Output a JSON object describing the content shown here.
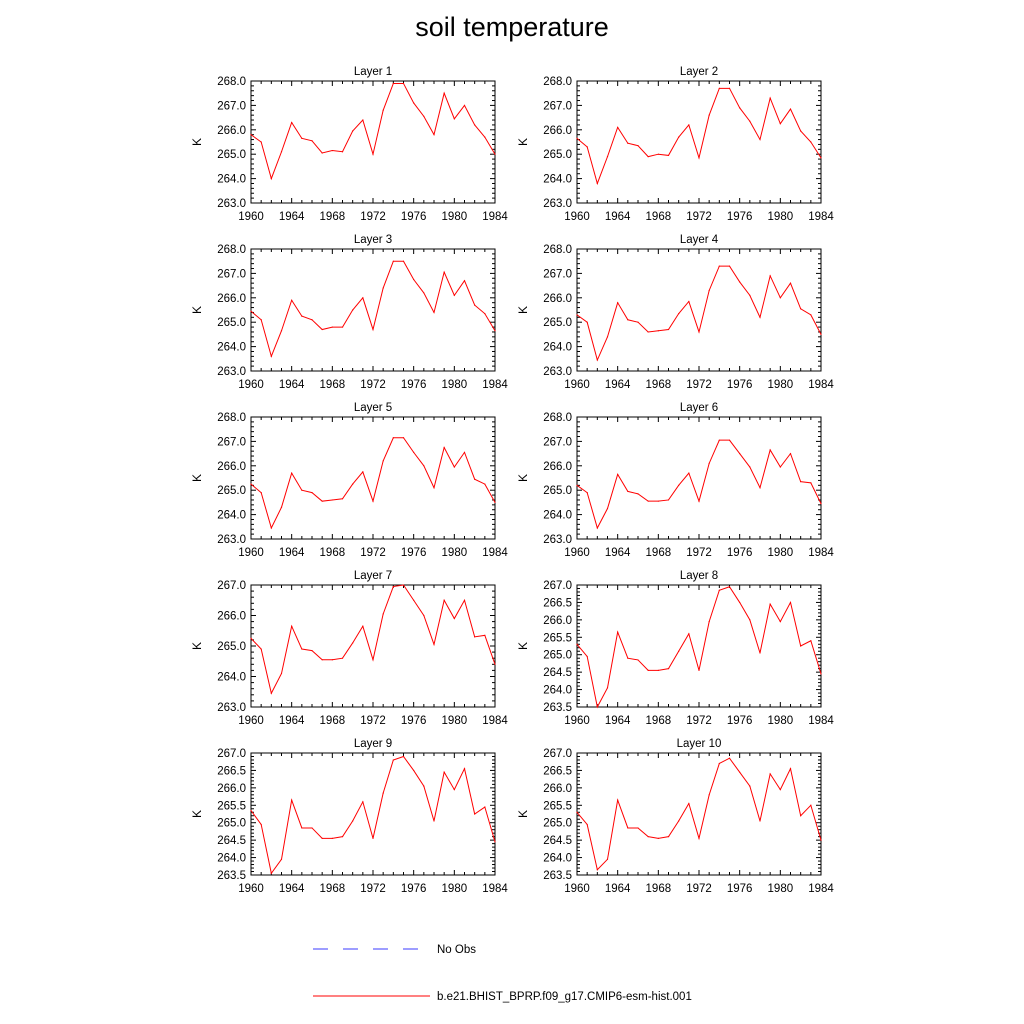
{
  "title": "soil temperature",
  "colors": {
    "model": "#ff0000",
    "obs": "#3b3bff",
    "axis": "#000000"
  },
  "legend": {
    "placement": "bottom-center",
    "items": [
      {
        "label": "No Obs",
        "style": "dashed",
        "color": "#3b3bff"
      },
      {
        "label": "b.e21.BHIST_BPRP.f09_g17.CMIP6-esm-hist.001",
        "style": "solid",
        "color": "#ff0000"
      }
    ]
  },
  "chart_data": [
    {
      "type": "line",
      "title": "Layer 1",
      "ylabel": "K",
      "xlim": [
        1960,
        1984
      ],
      "ylim": [
        263.0,
        268.0
      ],
      "xticks": [
        "1960",
        "1964",
        "1968",
        "1972",
        "1976",
        "1980",
        "1984"
      ],
      "yticks": [
        "263.0",
        "264.0",
        "265.0",
        "266.0",
        "267.0",
        "268.0"
      ],
      "x": [
        1960,
        1961,
        1962,
        1963,
        1964,
        1965,
        1966,
        1967,
        1968,
        1969,
        1970,
        1971,
        1972,
        1973,
        1974,
        1975,
        1976,
        1977,
        1978,
        1979,
        1980,
        1981,
        1982,
        1983,
        1984
      ],
      "series": [
        {
          "values": [
            265.8,
            265.5,
            264.0,
            265.1,
            266.3,
            265.65,
            265.55,
            265.05,
            265.15,
            265.1,
            265.95,
            266.4,
            265.0,
            266.8,
            267.9,
            267.9,
            267.1,
            266.55,
            265.8,
            267.5,
            266.45,
            267.0,
            266.2,
            265.7,
            265.0
          ]
        }
      ]
    },
    {
      "type": "line",
      "title": "Layer 2",
      "ylabel": "K",
      "xlim": [
        1960,
        1984
      ],
      "ylim": [
        263.0,
        268.0
      ],
      "xticks": [
        "1960",
        "1964",
        "1968",
        "1972",
        "1976",
        "1980",
        "1984"
      ],
      "yticks": [
        "263.0",
        "264.0",
        "265.0",
        "266.0",
        "267.0",
        "268.0"
      ],
      "x": [
        1960,
        1961,
        1962,
        1963,
        1964,
        1965,
        1966,
        1967,
        1968,
        1969,
        1970,
        1971,
        1972,
        1973,
        1974,
        1975,
        1976,
        1977,
        1978,
        1979,
        1980,
        1981,
        1982,
        1983,
        1984
      ],
      "series": [
        {
          "values": [
            265.65,
            265.3,
            263.8,
            264.9,
            266.1,
            265.45,
            265.35,
            264.9,
            265.0,
            264.95,
            265.7,
            266.2,
            264.85,
            266.6,
            267.7,
            267.7,
            266.9,
            266.35,
            265.6,
            267.3,
            266.25,
            266.85,
            265.95,
            265.5,
            264.85
          ]
        }
      ]
    },
    {
      "type": "line",
      "title": "Layer 3",
      "ylabel": "K",
      "xlim": [
        1960,
        1984
      ],
      "ylim": [
        263.0,
        268.0
      ],
      "xticks": [
        "1960",
        "1964",
        "1968",
        "1972",
        "1976",
        "1980",
        "1984"
      ],
      "yticks": [
        "263.0",
        "264.0",
        "265.0",
        "266.0",
        "267.0",
        "268.0"
      ],
      "x": [
        1960,
        1961,
        1962,
        1963,
        1964,
        1965,
        1966,
        1967,
        1968,
        1969,
        1970,
        1971,
        1972,
        1973,
        1974,
        1975,
        1976,
        1977,
        1978,
        1979,
        1980,
        1981,
        1982,
        1983,
        1984
      ],
      "series": [
        {
          "values": [
            265.45,
            265.1,
            263.6,
            264.65,
            265.9,
            265.25,
            265.1,
            264.7,
            264.8,
            264.8,
            265.5,
            266.0,
            264.7,
            266.4,
            267.5,
            267.5,
            266.75,
            266.2,
            265.4,
            267.05,
            266.1,
            266.7,
            265.7,
            265.35,
            264.65
          ]
        }
      ]
    },
    {
      "type": "line",
      "title": "Layer 4",
      "ylabel": "K",
      "xlim": [
        1960,
        1984
      ],
      "ylim": [
        263.0,
        268.0
      ],
      "xticks": [
        "1960",
        "1964",
        "1968",
        "1972",
        "1976",
        "1980",
        "1984"
      ],
      "yticks": [
        "263.0",
        "264.0",
        "265.0",
        "266.0",
        "267.0",
        "268.0"
      ],
      "x": [
        1960,
        1961,
        1962,
        1963,
        1964,
        1965,
        1966,
        1967,
        1968,
        1969,
        1970,
        1971,
        1972,
        1973,
        1974,
        1975,
        1976,
        1977,
        1978,
        1979,
        1980,
        1981,
        1982,
        1983,
        1984
      ],
      "series": [
        {
          "values": [
            265.3,
            265.0,
            263.45,
            264.4,
            265.8,
            265.1,
            265.0,
            264.6,
            264.65,
            264.7,
            265.35,
            265.85,
            264.6,
            266.3,
            267.3,
            267.3,
            266.65,
            266.1,
            265.2,
            266.9,
            266.0,
            266.6,
            265.55,
            265.3,
            264.5
          ]
        }
      ]
    },
    {
      "type": "line",
      "title": "Layer 5",
      "ylabel": "K",
      "xlim": [
        1960,
        1984
      ],
      "ylim": [
        263.0,
        268.0
      ],
      "xticks": [
        "1960",
        "1964",
        "1968",
        "1972",
        "1976",
        "1980",
        "1984"
      ],
      "yticks": [
        "263.0",
        "264.0",
        "265.0",
        "266.0",
        "267.0",
        "268.0"
      ],
      "x": [
        1960,
        1961,
        1962,
        1963,
        1964,
        1965,
        1966,
        1967,
        1968,
        1969,
        1970,
        1971,
        1972,
        1973,
        1974,
        1975,
        1976,
        1977,
        1978,
        1979,
        1980,
        1981,
        1982,
        1983,
        1984
      ],
      "series": [
        {
          "values": [
            265.25,
            264.9,
            263.45,
            264.3,
            265.7,
            265.0,
            264.9,
            264.55,
            264.6,
            264.65,
            265.25,
            265.75,
            264.55,
            266.2,
            267.15,
            267.15,
            266.55,
            266.0,
            265.1,
            266.75,
            265.95,
            266.55,
            265.45,
            265.25,
            264.5
          ]
        }
      ]
    },
    {
      "type": "line",
      "title": "Layer 6",
      "ylabel": "K",
      "xlim": [
        1960,
        1984
      ],
      "ylim": [
        263.0,
        268.0
      ],
      "xticks": [
        "1960",
        "1964",
        "1968",
        "1972",
        "1976",
        "1980",
        "1984"
      ],
      "yticks": [
        "263.0",
        "264.0",
        "265.0",
        "266.0",
        "267.0",
        "268.0"
      ],
      "x": [
        1960,
        1961,
        1962,
        1963,
        1964,
        1965,
        1966,
        1967,
        1968,
        1969,
        1970,
        1971,
        1972,
        1973,
        1974,
        1975,
        1976,
        1977,
        1978,
        1979,
        1980,
        1981,
        1982,
        1983,
        1984
      ],
      "series": [
        {
          "values": [
            265.2,
            264.9,
            263.45,
            264.25,
            265.65,
            264.95,
            264.85,
            264.55,
            264.55,
            264.6,
            265.2,
            265.7,
            264.55,
            266.1,
            267.05,
            267.05,
            266.5,
            265.95,
            265.1,
            266.65,
            265.95,
            266.5,
            265.35,
            265.3,
            264.45
          ]
        }
      ]
    },
    {
      "type": "line",
      "title": "Layer 7",
      "ylabel": "K",
      "xlim": [
        1960,
        1984
      ],
      "ylim": [
        263.0,
        267.0
      ],
      "xticks": [
        "1960",
        "1964",
        "1968",
        "1972",
        "1976",
        "1980",
        "1984"
      ],
      "yticks": [
        "263.0",
        "264.0",
        "265.0",
        "266.0",
        "267.0"
      ],
      "x": [
        1960,
        1961,
        1962,
        1963,
        1964,
        1965,
        1966,
        1967,
        1968,
        1969,
        1970,
        1971,
        1972,
        1973,
        1974,
        1975,
        1976,
        1977,
        1978,
        1979,
        1980,
        1981,
        1982,
        1983,
        1984
      ],
      "series": [
        {
          "values": [
            265.25,
            264.9,
            263.45,
            264.1,
            265.65,
            264.9,
            264.85,
            264.55,
            264.55,
            264.6,
            265.1,
            265.65,
            264.55,
            266.05,
            266.95,
            267.0,
            266.5,
            266.0,
            265.05,
            266.5,
            265.9,
            266.5,
            265.3,
            265.35,
            264.4
          ]
        }
      ]
    },
    {
      "type": "line",
      "title": "Layer 8",
      "ylabel": "K",
      "xlim": [
        1960,
        1984
      ],
      "ylim": [
        263.5,
        267.0
      ],
      "xticks": [
        "1960",
        "1964",
        "1968",
        "1972",
        "1976",
        "1980",
        "1984"
      ],
      "yticks": [
        "263.5",
        "264.0",
        "264.5",
        "265.0",
        "265.5",
        "266.0",
        "266.5",
        "267.0"
      ],
      "x": [
        1960,
        1961,
        1962,
        1963,
        1964,
        1965,
        1966,
        1967,
        1968,
        1969,
        1970,
        1971,
        1972,
        1973,
        1974,
        1975,
        1976,
        1977,
        1978,
        1979,
        1980,
        1981,
        1982,
        1983,
        1984
      ],
      "series": [
        {
          "values": [
            265.3,
            264.95,
            263.5,
            264.05,
            265.65,
            264.9,
            264.85,
            264.55,
            264.55,
            264.6,
            265.1,
            265.6,
            264.55,
            265.95,
            266.85,
            266.95,
            266.5,
            266.0,
            265.05,
            266.45,
            265.95,
            266.5,
            265.25,
            265.4,
            264.45
          ]
        }
      ]
    },
    {
      "type": "line",
      "title": "Layer 9",
      "ylabel": "K",
      "xlim": [
        1960,
        1984
      ],
      "ylim": [
        263.5,
        267.0
      ],
      "xticks": [
        "1960",
        "1964",
        "1968",
        "1972",
        "1976",
        "1980",
        "1984"
      ],
      "yticks": [
        "263.5",
        "264.0",
        "264.5",
        "265.0",
        "265.5",
        "266.0",
        "266.5",
        "267.0"
      ],
      "x": [
        1960,
        1961,
        1962,
        1963,
        1964,
        1965,
        1966,
        1967,
        1968,
        1969,
        1970,
        1971,
        1972,
        1973,
        1974,
        1975,
        1976,
        1977,
        1978,
        1979,
        1980,
        1981,
        1982,
        1983,
        1984
      ],
      "series": [
        {
          "values": [
            265.35,
            264.95,
            263.55,
            263.95,
            265.65,
            264.85,
            264.85,
            264.55,
            264.55,
            264.6,
            265.05,
            265.6,
            264.55,
            265.85,
            266.8,
            266.9,
            266.5,
            266.05,
            265.05,
            266.45,
            265.95,
            266.55,
            265.25,
            265.45,
            264.45
          ]
        }
      ]
    },
    {
      "type": "line",
      "title": "Layer 10",
      "ylabel": "K",
      "xlim": [
        1960,
        1984
      ],
      "ylim": [
        263.5,
        267.0
      ],
      "xticks": [
        "1960",
        "1964",
        "1968",
        "1972",
        "1976",
        "1980",
        "1984"
      ],
      "yticks": [
        "263.5",
        "264.0",
        "264.5",
        "265.0",
        "265.5",
        "266.0",
        "266.5",
        "267.0"
      ],
      "x": [
        1960,
        1961,
        1962,
        1963,
        1964,
        1965,
        1966,
        1967,
        1968,
        1969,
        1970,
        1971,
        1972,
        1973,
        1974,
        1975,
        1976,
        1977,
        1978,
        1979,
        1980,
        1981,
        1982,
        1983,
        1984
      ],
      "series": [
        {
          "values": [
            265.3,
            264.95,
            263.65,
            263.95,
            265.65,
            264.85,
            264.85,
            264.6,
            264.55,
            264.6,
            265.05,
            265.55,
            264.55,
            265.8,
            266.7,
            266.85,
            266.45,
            266.05,
            265.05,
            266.4,
            265.95,
            266.55,
            265.2,
            265.5,
            264.5
          ]
        }
      ]
    }
  ]
}
